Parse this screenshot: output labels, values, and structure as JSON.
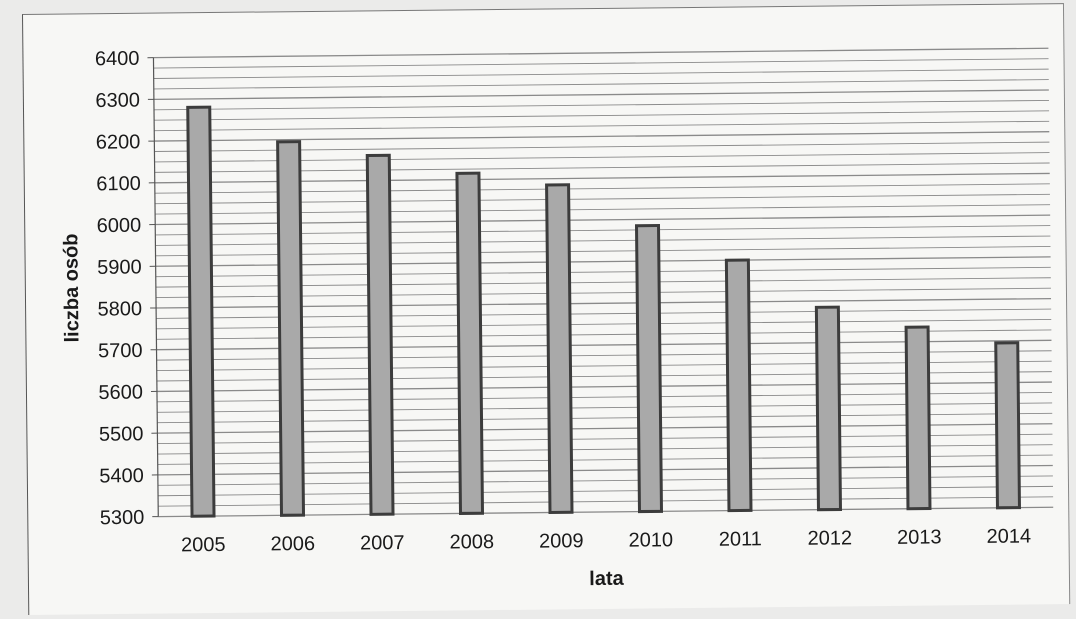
{
  "chart_data": {
    "type": "bar",
    "categories": [
      "2005",
      "2006",
      "2007",
      "2008",
      "2009",
      "2010",
      "2011",
      "2012",
      "2013",
      "2014"
    ],
    "values": [
      6280,
      6195,
      6160,
      6115,
      6085,
      5985,
      5900,
      5785,
      5735,
      5695
    ],
    "xlabel": "lata",
    "ylabel": "liczba osób",
    "ylim": [
      5300,
      6400
    ],
    "yticks": [
      "5300",
      "5400",
      "5500",
      "5600",
      "5700",
      "5800",
      "5900",
      "6000",
      "6100",
      "6200",
      "6300",
      "6400"
    ],
    "grid": true,
    "legend": "none",
    "colors": {
      "bar_fill": "#a9a9a9",
      "bar_edge": "#3c3c3c",
      "grid": "#8a8a8a"
    }
  }
}
